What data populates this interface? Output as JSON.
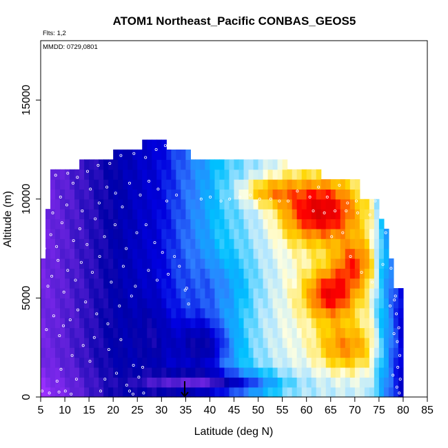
{
  "chart_data": {
    "type": "heatmap",
    "title": "ATOM1 Northeast_Pacific CONBAS_GEOS5",
    "subtitle": "Flts: 1,2",
    "annotation": "MMDD: 0729,0801",
    "xlabel": "Latitude (deg N)",
    "ylabel": "Altitude (m)",
    "xlim": [
      5,
      85
    ],
    "ylim": [
      0,
      18000
    ],
    "x_ticks": [
      5,
      10,
      15,
      20,
      25,
      30,
      35,
      40,
      45,
      50,
      55,
      60,
      65,
      70,
      75,
      80,
      85
    ],
    "y_ticks": [
      0,
      5000,
      10000,
      15000
    ],
    "grid": false,
    "legend": "none",
    "cell_width_deg": 1,
    "cell_height_m": 500,
    "column_tops_m": [
      {
        "from": 5,
        "to": 6,
        "top": 7000
      },
      {
        "from": 6,
        "to": 7,
        "top": 9500
      },
      {
        "from": 7,
        "to": 13,
        "top": 11500
      },
      {
        "from": 13,
        "to": 20,
        "top": 12000
      },
      {
        "from": 20,
        "to": 26,
        "top": 12500
      },
      {
        "from": 26,
        "to": 31,
        "top": 13000
      },
      {
        "from": 31,
        "to": 36,
        "top": 12500
      },
      {
        "from": 36,
        "to": 42,
        "top": 12000
      },
      {
        "from": 42,
        "to": 56,
        "top": 12000
      },
      {
        "from": 56,
        "to": 63,
        "top": 11500
      },
      {
        "from": 63,
        "to": 71,
        "top": 11000
      },
      {
        "from": 71,
        "to": 75,
        "top": 10000
      },
      {
        "from": 75,
        "to": 76,
        "top": 9000
      },
      {
        "from": 76,
        "to": 77,
        "top": 8500
      },
      {
        "from": 77,
        "to": 78,
        "top": 7000
      },
      {
        "from": 78,
        "to": 79,
        "top": 5500
      },
      {
        "from": 79,
        "to": 80,
        "top": 5500
      }
    ],
    "palette": [
      {
        "v": 0.0,
        "color": "#9b30ff"
      },
      {
        "v": 0.12,
        "color": "#5a1fd6"
      },
      {
        "v": 0.22,
        "color": "#0000a8"
      },
      {
        "v": 0.32,
        "color": "#0000e0"
      },
      {
        "v": 0.42,
        "color": "#2f7dff"
      },
      {
        "v": 0.52,
        "color": "#00c0ff"
      },
      {
        "v": 0.6,
        "color": "#b3e6ff"
      },
      {
        "v": 0.66,
        "color": "#ffffe0"
      },
      {
        "v": 0.74,
        "color": "#ffd500"
      },
      {
        "v": 0.82,
        "color": "#ff8c00"
      },
      {
        "v": 0.9,
        "color": "#ff0000"
      },
      {
        "v": 1.0,
        "color": "#cc0000"
      }
    ],
    "feature_marker": {
      "x": 34.8,
      "y_top": 800,
      "y_bottom": 0,
      "type": "down-arrow"
    },
    "sample_points": [
      [
        5.3,
        300
      ],
      [
        6.8,
        200
      ],
      [
        8.4,
        800
      ],
      [
        9.2,
        1400
      ],
      [
        10.1,
        300
      ],
      [
        11.5,
        2100
      ],
      [
        12.4,
        900
      ],
      [
        13.8,
        2600
      ],
      [
        15.2,
        1800
      ],
      [
        16.1,
        3000
      ],
      [
        17.4,
        300
      ],
      [
        18.3,
        900
      ],
      [
        19.1,
        2400
      ],
      [
        20.7,
        1200
      ],
      [
        21.6,
        2900
      ],
      [
        22.8,
        600
      ],
      [
        23.4,
        300
      ],
      [
        24.2,
        1600
      ],
      [
        25.3,
        1000
      ],
      [
        26.1,
        1500
      ],
      [
        6.2,
        3400
      ],
      [
        7.7,
        4100
      ],
      [
        8.9,
        3100
      ],
      [
        9.7,
        3600
      ],
      [
        11.1,
        3900
      ],
      [
        12.7,
        4400
      ],
      [
        14.3,
        4800
      ],
      [
        16.6,
        4200
      ],
      [
        18.9,
        3700
      ],
      [
        21.3,
        4600
      ],
      [
        23.8,
        5100
      ],
      [
        6.5,
        5600
      ],
      [
        7.3,
        6100
      ],
      [
        8.6,
        6900
      ],
      [
        9.8,
        5300
      ],
      [
        10.6,
        6400
      ],
      [
        12.2,
        5900
      ],
      [
        13.4,
        6800
      ],
      [
        15.7,
        6300
      ],
      [
        17.2,
        7100
      ],
      [
        19.6,
        5800
      ],
      [
        22.1,
        6600
      ],
      [
        24.6,
        5600
      ],
      [
        27.3,
        6400
      ],
      [
        29.1,
        5900
      ],
      [
        31.4,
        6200
      ],
      [
        33.7,
        6600
      ],
      [
        35.2,
        5500
      ],
      [
        5.8,
        7500
      ],
      [
        7.1,
        8200
      ],
      [
        8.3,
        7600
      ],
      [
        9.4,
        8800
      ],
      [
        11.8,
        7900
      ],
      [
        13.1,
        8500
      ],
      [
        14.6,
        7700
      ],
      [
        16.3,
        9000
      ],
      [
        18.2,
        8100
      ],
      [
        20.4,
        8700
      ],
      [
        22.7,
        7500
      ],
      [
        24.9,
        8300
      ],
      [
        26.8,
        8700
      ],
      [
        28.6,
        7800
      ],
      [
        30.2,
        7300
      ],
      [
        32.7,
        7100
      ],
      [
        7.5,
        9300
      ],
      [
        9.1,
        10100
      ],
      [
        10.4,
        9700
      ],
      [
        11.7,
        10800
      ],
      [
        13.6,
        9400
      ],
      [
        15.3,
        10500
      ],
      [
        17.1,
        9800
      ],
      [
        18.7,
        10600
      ],
      [
        20.5,
        10300
      ],
      [
        21.9,
        9600
      ],
      [
        23.4,
        10800
      ],
      [
        25.6,
        10200
      ],
      [
        27.4,
        10900
      ],
      [
        29.3,
        10500
      ],
      [
        31.1,
        9900
      ],
      [
        33.1,
        10200
      ],
      [
        8.1,
        11200
      ],
      [
        10.6,
        11300
      ],
      [
        12.6,
        11100
      ],
      [
        14.7,
        11400
      ],
      [
        16.9,
        11700
      ],
      [
        19.3,
        11800
      ],
      [
        21.6,
        12200
      ],
      [
        24.3,
        12300
      ],
      [
        26.7,
        12100
      ],
      [
        28.9,
        12500
      ],
      [
        30.8,
        12700
      ],
      [
        38.2,
        10000
      ],
      [
        40.1,
        10100
      ],
      [
        42.3,
        9900
      ],
      [
        44.1,
        10000
      ],
      [
        46.2,
        10100
      ],
      [
        48.4,
        10200
      ],
      [
        50.3,
        10000
      ],
      [
        52.6,
        10000
      ],
      [
        54.4,
        9900
      ],
      [
        56.2,
        9900
      ],
      [
        58.1,
        10400
      ],
      [
        60.7,
        10100
      ],
      [
        62.5,
        10600
      ],
      [
        64.3,
        10100
      ],
      [
        66.8,
        10700
      ],
      [
        68.5,
        9800
      ],
      [
        70.3,
        9900
      ],
      [
        72.1,
        10100
      ],
      [
        74.2,
        9900
      ],
      [
        61.4,
        9400
      ],
      [
        63.7,
        9300
      ],
      [
        65.9,
        9400
      ],
      [
        68.2,
        9400
      ],
      [
        70.6,
        9300
      ],
      [
        73.1,
        9200
      ],
      [
        75.3,
        9100
      ],
      [
        76.4,
        8300
      ],
      [
        77.5,
        6500
      ],
      [
        78.2,
        4900
      ],
      [
        78.6,
        4200
      ],
      [
        79.1,
        3500
      ],
      [
        78.8,
        2800
      ],
      [
        79.3,
        2100
      ],
      [
        78.9,
        1500
      ],
      [
        79.4,
        900
      ],
      [
        78.7,
        500
      ],
      [
        79.2,
        200
      ],
      [
        34.9,
        5400
      ],
      [
        35.6,
        4700
      ],
      [
        65.2,
        8100
      ],
      [
        67.5,
        8300
      ],
      [
        69.1,
        7100
      ],
      [
        71.4,
        6300
      ],
      [
        73.6,
        5800
      ],
      [
        75.8,
        6700
      ],
      [
        77.3,
        4600
      ],
      [
        78.1,
        3200
      ],
      [
        78.4,
        5100
      ],
      [
        77.9,
        1100
      ],
      [
        24.1,
        150
      ],
      [
        26.3,
        200
      ],
      [
        11.3,
        150
      ],
      [
        8.8,
        250
      ]
    ]
  }
}
